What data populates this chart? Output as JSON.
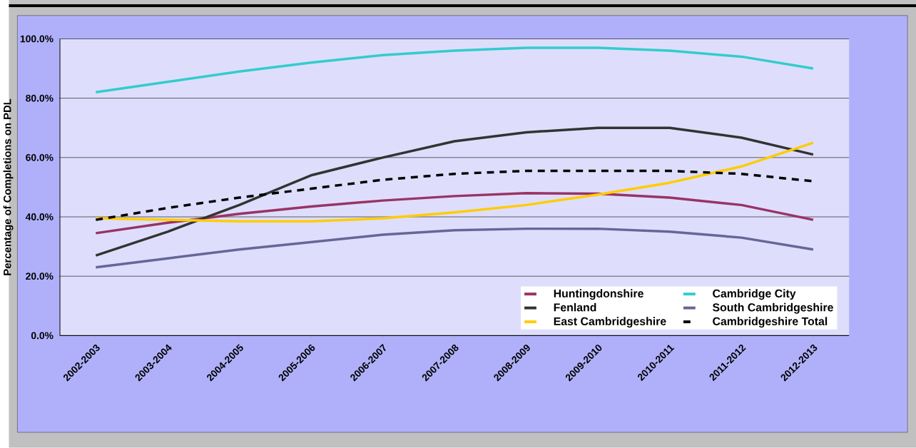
{
  "chart_data": {
    "type": "line",
    "ylabel": "Percentage of Completions on PDL",
    "categories": [
      "2002-2003",
      "2003-2004",
      "2004-2005",
      "2005-2006",
      "2006-2007",
      "2007-2008",
      "2008-2009",
      "2009-2010",
      "2010-2011",
      "2011-2012",
      "2012-2013"
    ],
    "ylim": [
      0,
      100
    ],
    "yticks": [
      {
        "value": 0,
        "label": "0.0%"
      },
      {
        "value": 20,
        "label": "20.0%"
      },
      {
        "value": 40,
        "label": "40.0%"
      },
      {
        "value": 60,
        "label": "60.0%"
      },
      {
        "value": 80,
        "label": "80.0%"
      },
      {
        "value": 100,
        "label": "100.0%"
      }
    ],
    "grid": "y",
    "legend": "bottom right",
    "marker": "none",
    "line_style": "solid",
    "series": [
      {
        "name": "Huntingdonshire",
        "color": "#993366",
        "values": [
          34.5,
          38,
          41,
          43.5,
          45.5,
          47,
          48,
          47.8,
          46.5,
          44,
          39
        ]
      },
      {
        "name": "Cambridge City",
        "color": "#33cccc",
        "values": [
          82,
          85.5,
          89,
          92,
          94.5,
          96,
          97,
          97,
          96,
          94,
          90
        ]
      },
      {
        "name": "Fenland",
        "color": "#333333",
        "values": [
          27,
          35,
          44,
          54,
          60,
          65.5,
          68.5,
          70,
          70,
          66.7,
          61
        ]
      },
      {
        "name": "South Cambridgeshire",
        "color": "#666699",
        "values": [
          23,
          26,
          29,
          31.5,
          34,
          35.5,
          36,
          36,
          35,
          33,
          29
        ]
      },
      {
        "name": "East Cambridgeshire",
        "color": "#ffcc00",
        "values": [
          39.5,
          39,
          38.5,
          38.5,
          39.5,
          41.5,
          44,
          47.5,
          51.5,
          57,
          65
        ]
      },
      {
        "name": "Cambridgeshire Total",
        "color": "#000000",
        "line_style": "dashed",
        "values": [
          39,
          43,
          46.5,
          49.5,
          52.5,
          54.5,
          55.5,
          55.5,
          55.5,
          54.5,
          52
        ]
      }
    ]
  }
}
